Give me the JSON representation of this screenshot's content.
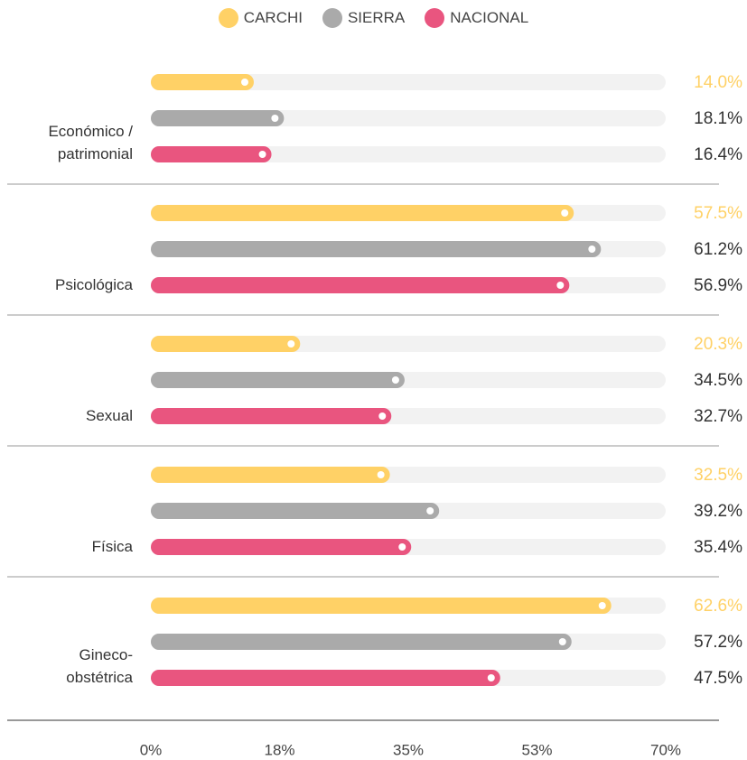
{
  "chart_data": {
    "type": "bar",
    "orientation": "horizontal",
    "categories": [
      "Económico / patrimonial",
      "Psicológica",
      "Sexual",
      "Física",
      "Gineco-obstétrica"
    ],
    "series": [
      {
        "name": "CARCHI",
        "color": "#ffd166",
        "label_color": "#ffd166",
        "values": [
          14.0,
          57.5,
          20.3,
          32.5,
          62.6
        ],
        "value_labels": [
          "14.0%",
          "57.5%",
          "20.3%",
          "32.5%",
          "62.6%"
        ]
      },
      {
        "name": "SIERRA",
        "color": "#aaaaaa",
        "label_color": "#333333",
        "values": [
          18.1,
          61.2,
          34.5,
          39.2,
          57.2
        ],
        "value_labels": [
          "18.1%",
          "61.2%",
          "34.5%",
          "39.2%",
          "57.2%"
        ]
      },
      {
        "name": "NACIONAL",
        "color": "#e9557f",
        "label_color": "#333333",
        "values": [
          16.4,
          56.9,
          32.7,
          35.4,
          47.5
        ],
        "value_labels": [
          "16.4%",
          "56.9%",
          "32.7%",
          "35.4%",
          "47.5%"
        ]
      }
    ],
    "xlim": [
      0,
      70
    ],
    "xticks": [
      {
        "value": 0,
        "label": "0%"
      },
      {
        "value": 17.5,
        "label": "18%"
      },
      {
        "value": 35,
        "label": "35%"
      },
      {
        "value": 52.5,
        "label": "53%"
      },
      {
        "value": 70,
        "label": "70%"
      }
    ]
  }
}
